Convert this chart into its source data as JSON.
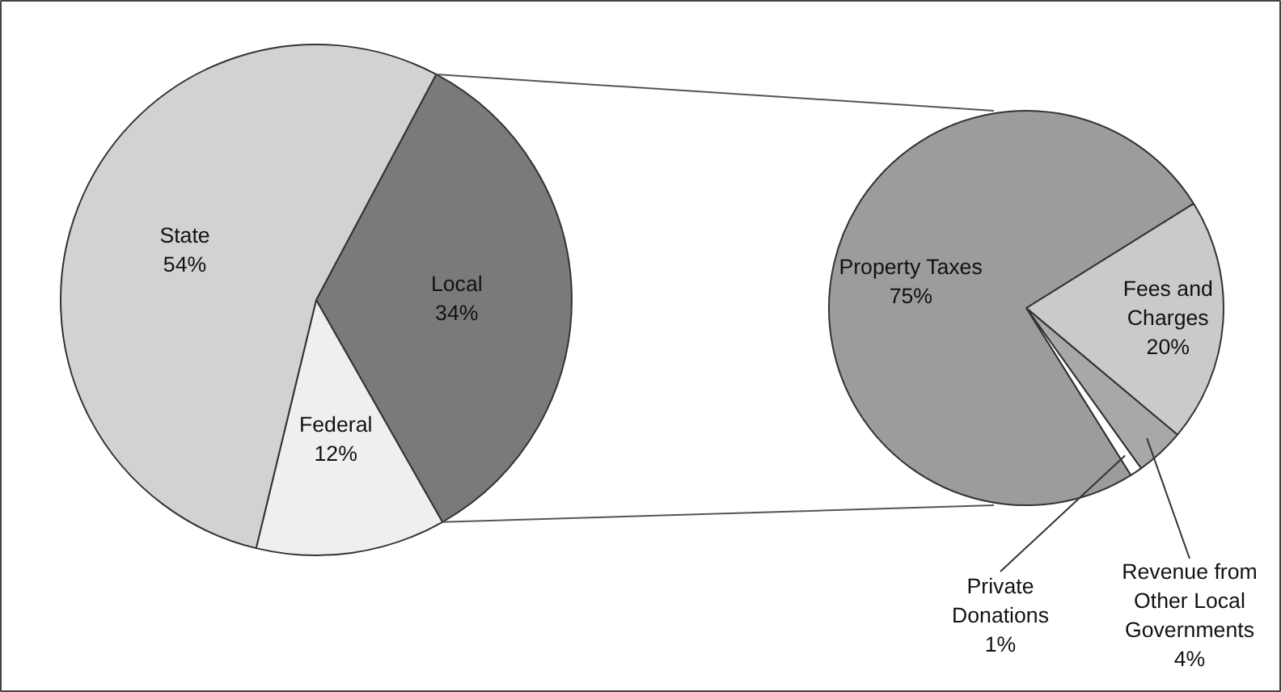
{
  "chart_data": [
    {
      "type": "pie",
      "categories": [
        "Local",
        "Federal",
        "State"
      ],
      "values": [
        34,
        12,
        54
      ],
      "value_labels": [
        "34%",
        "12%",
        "54%"
      ],
      "colors": [
        "#7a7a7a",
        "#efefef",
        "#d2d2d2"
      ]
    },
    {
      "type": "pie",
      "categories": [
        "Fees and Charges",
        "Revenue from Other Local Governments",
        "Private Donations",
        "Property Taxes"
      ],
      "values": [
        20,
        4,
        1,
        75
      ],
      "value_labels": [
        "20%",
        "4%",
        "1%",
        "75%"
      ],
      "colors": [
        "#cacaca",
        "#a8a8a8",
        "#ffffff",
        "#9c9c9c"
      ]
    }
  ]
}
